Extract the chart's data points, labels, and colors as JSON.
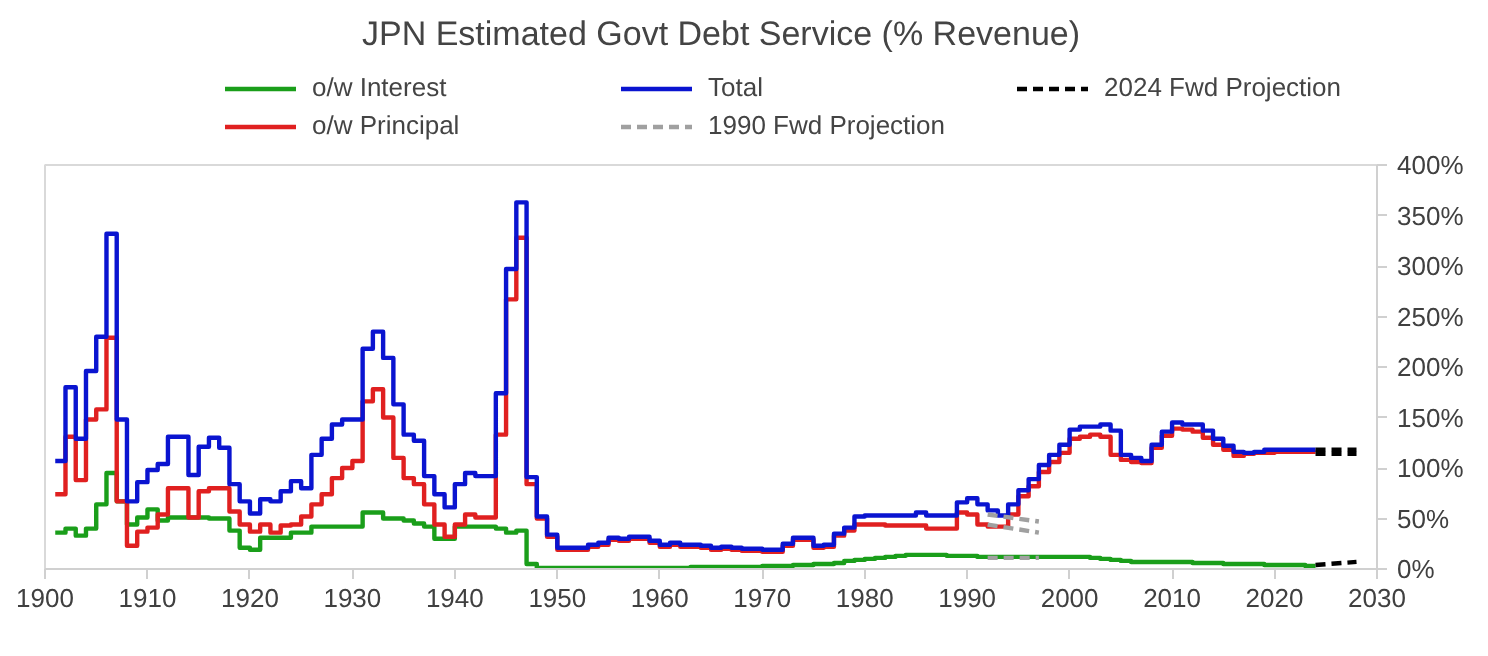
{
  "chart_data": {
    "type": "step",
    "title": "JPN Estimated Govt Debt Service (% Revenue)",
    "x": [
      1901,
      1902,
      1903,
      1904,
      1905,
      1906,
      1907,
      1908,
      1909,
      1910,
      1911,
      1912,
      1913,
      1914,
      1915,
      1916,
      1917,
      1918,
      1919,
      1920,
      1921,
      1922,
      1923,
      1924,
      1925,
      1926,
      1927,
      1928,
      1929,
      1930,
      1931,
      1932,
      1933,
      1934,
      1935,
      1936,
      1937,
      1938,
      1939,
      1940,
      1941,
      1942,
      1943,
      1944,
      1945,
      1946,
      1947,
      1948,
      1949,
      1950,
      1951,
      1952,
      1953,
      1954,
      1955,
      1956,
      1957,
      1958,
      1959,
      1960,
      1961,
      1962,
      1963,
      1964,
      1965,
      1966,
      1967,
      1968,
      1969,
      1970,
      1971,
      1972,
      1973,
      1974,
      1975,
      1976,
      1977,
      1978,
      1979,
      1980,
      1981,
      1982,
      1983,
      1984,
      1985,
      1986,
      1987,
      1988,
      1989,
      1990,
      1991,
      1992,
      1993,
      1994,
      1995,
      1996,
      1997,
      1998,
      1999,
      2000,
      2001,
      2002,
      2003,
      2004,
      2005,
      2006,
      2007,
      2008,
      2009,
      2010,
      2011,
      2012,
      2013,
      2014,
      2015,
      2016,
      2017,
      2018,
      2019,
      2020,
      2021,
      2022,
      2023,
      2024
    ],
    "series": [
      {
        "name": "o/w Interest",
        "color": "#1a9e1a",
        "line_style": "solid",
        "values": [
          36,
          40,
          33,
          40,
          64,
          95,
          67,
          44,
          51,
          59,
          48,
          51,
          51,
          51,
          51,
          50,
          50,
          38,
          21,
          19,
          31,
          31,
          31,
          36,
          36,
          42,
          42,
          42,
          42,
          42,
          56,
          56,
          50,
          50,
          48,
          45,
          42,
          30,
          30,
          42,
          42,
          42,
          42,
          40,
          36,
          38,
          5,
          1,
          1,
          1,
          1,
          1,
          1,
          1,
          1,
          1,
          1,
          1,
          1,
          1,
          1,
          1,
          2,
          2,
          2,
          2,
          2,
          2,
          2,
          3,
          3,
          3,
          4,
          4,
          5,
          5,
          6,
          8,
          9,
          10,
          11,
          12,
          13,
          14,
          14,
          14,
          14,
          13,
          13,
          13,
          12,
          12,
          12,
          12,
          12,
          12,
          12,
          12,
          12,
          12,
          12,
          11,
          10,
          9,
          8,
          7,
          7,
          7,
          7,
          7,
          7,
          6,
          6,
          6,
          5,
          5,
          5,
          5,
          4,
          4,
          4,
          4,
          3,
          3
        ]
      },
      {
        "name": "o/w Principal",
        "color": "#e02020",
        "line_style": "solid",
        "values": [
          74,
          131,
          88,
          148,
          158,
          229,
          67,
          23,
          37,
          41,
          54,
          80,
          80,
          51,
          77,
          80,
          80,
          57,
          44,
          37,
          44,
          36,
          43,
          44,
          52,
          64,
          74,
          90,
          100,
          107,
          166,
          178,
          150,
          110,
          90,
          84,
          64,
          44,
          32,
          44,
          54,
          51,
          51,
          133,
          267,
          328,
          84,
          50,
          32,
          19,
          19,
          19,
          22,
          24,
          29,
          28,
          30,
          30,
          26,
          22,
          24,
          22,
          22,
          21,
          19,
          20,
          19,
          18,
          18,
          17,
          17,
          23,
          29,
          29,
          21,
          22,
          33,
          38,
          44,
          44,
          44,
          43,
          43,
          43,
          43,
          40,
          40,
          40,
          56,
          54,
          44,
          42,
          42,
          54,
          72,
          82,
          96,
          106,
          115,
          129,
          131,
          133,
          131,
          113,
          108,
          106,
          105,
          120,
          132,
          139,
          138,
          136,
          130,
          123,
          118,
          112,
          114,
          115,
          115,
          116,
          116,
          116,
          116,
          116
        ]
      },
      {
        "name": "Total",
        "color": "#0a14d0",
        "line_style": "solid",
        "values": [
          107,
          180,
          129,
          196,
          230,
          332,
          148,
          67,
          86,
          98,
          104,
          131,
          131,
          93,
          121,
          130,
          120,
          84,
          67,
          55,
          69,
          67,
          77,
          87,
          80,
          113,
          129,
          143,
          148,
          148,
          218,
          235,
          209,
          163,
          133,
          127,
          92,
          74,
          61,
          84,
          95,
          92,
          92,
          174,
          297,
          363,
          91,
          52,
          34,
          21,
          21,
          21,
          24,
          26,
          31,
          30,
          32,
          32,
          28,
          24,
          26,
          24,
          24,
          23,
          21,
          22,
          21,
          20,
          20,
          19,
          19,
          25,
          31,
          31,
          23,
          24,
          35,
          41,
          52,
          53,
          53,
          53,
          53,
          53,
          56,
          53,
          53,
          53,
          66,
          70,
          64,
          58,
          53,
          64,
          78,
          89,
          103,
          113,
          123,
          138,
          141,
          141,
          143,
          137,
          113,
          110,
          107,
          123,
          136,
          145,
          143,
          143,
          137,
          129,
          122,
          116,
          115,
          116,
          118,
          118,
          118,
          118,
          118,
          118
        ]
      },
      {
        "name": "1990 Fwd Projection",
        "type": "line",
        "color": "#a0a0a0",
        "line_style": "dashed",
        "x": [
          1992,
          1997
        ],
        "values": [
          44,
          36
        ]
      },
      {
        "name": "2024 Fwd Projection",
        "type": "line",
        "color": "#000000",
        "line_style": "dashed",
        "x": [
          2024,
          2028
        ],
        "values": [
          4,
          7
        ]
      },
      {
        "type": "line",
        "color": "#a0a0a0",
        "line_style": "dashed",
        "x": [
          1992,
          1997
        ],
        "values": [
          54,
          47
        ]
      },
      {
        "type": "line",
        "color": "#a0a0a0",
        "line_style": "dashed",
        "x": [
          1992,
          1997
        ],
        "values": [
          11,
          11
        ]
      },
      {
        "type": "line",
        "color": "#000000",
        "line_style": "dashed",
        "x": [
          2024,
          2028
        ],
        "values": [
          114,
          114
        ]
      },
      {
        "type": "line",
        "color": "#000000",
        "line_style": "dashed",
        "x": [
          2024,
          2028
        ],
        "values": [
          118,
          118
        ]
      }
    ],
    "xlim": [
      1900,
      2030
    ],
    "xticks": [
      1900,
      1910,
      1920,
      1930,
      1940,
      1950,
      1960,
      1970,
      1980,
      1990,
      2000,
      2010,
      2020,
      2030
    ],
    "ylim": [
      0,
      400
    ],
    "yticks": [
      {
        "value": 0,
        "label": "0%"
      },
      {
        "value": 50,
        "label": "50%"
      },
      {
        "value": 100,
        "label": "100%"
      },
      {
        "value": 150,
        "label": "150%"
      },
      {
        "value": 200,
        "label": "200%"
      },
      {
        "value": 250,
        "label": "250%"
      },
      {
        "value": 300,
        "label": "300%"
      },
      {
        "value": 350,
        "label": "350%"
      },
      {
        "value": 400,
        "label": "400%"
      }
    ],
    "grid": false,
    "legend": "top"
  }
}
